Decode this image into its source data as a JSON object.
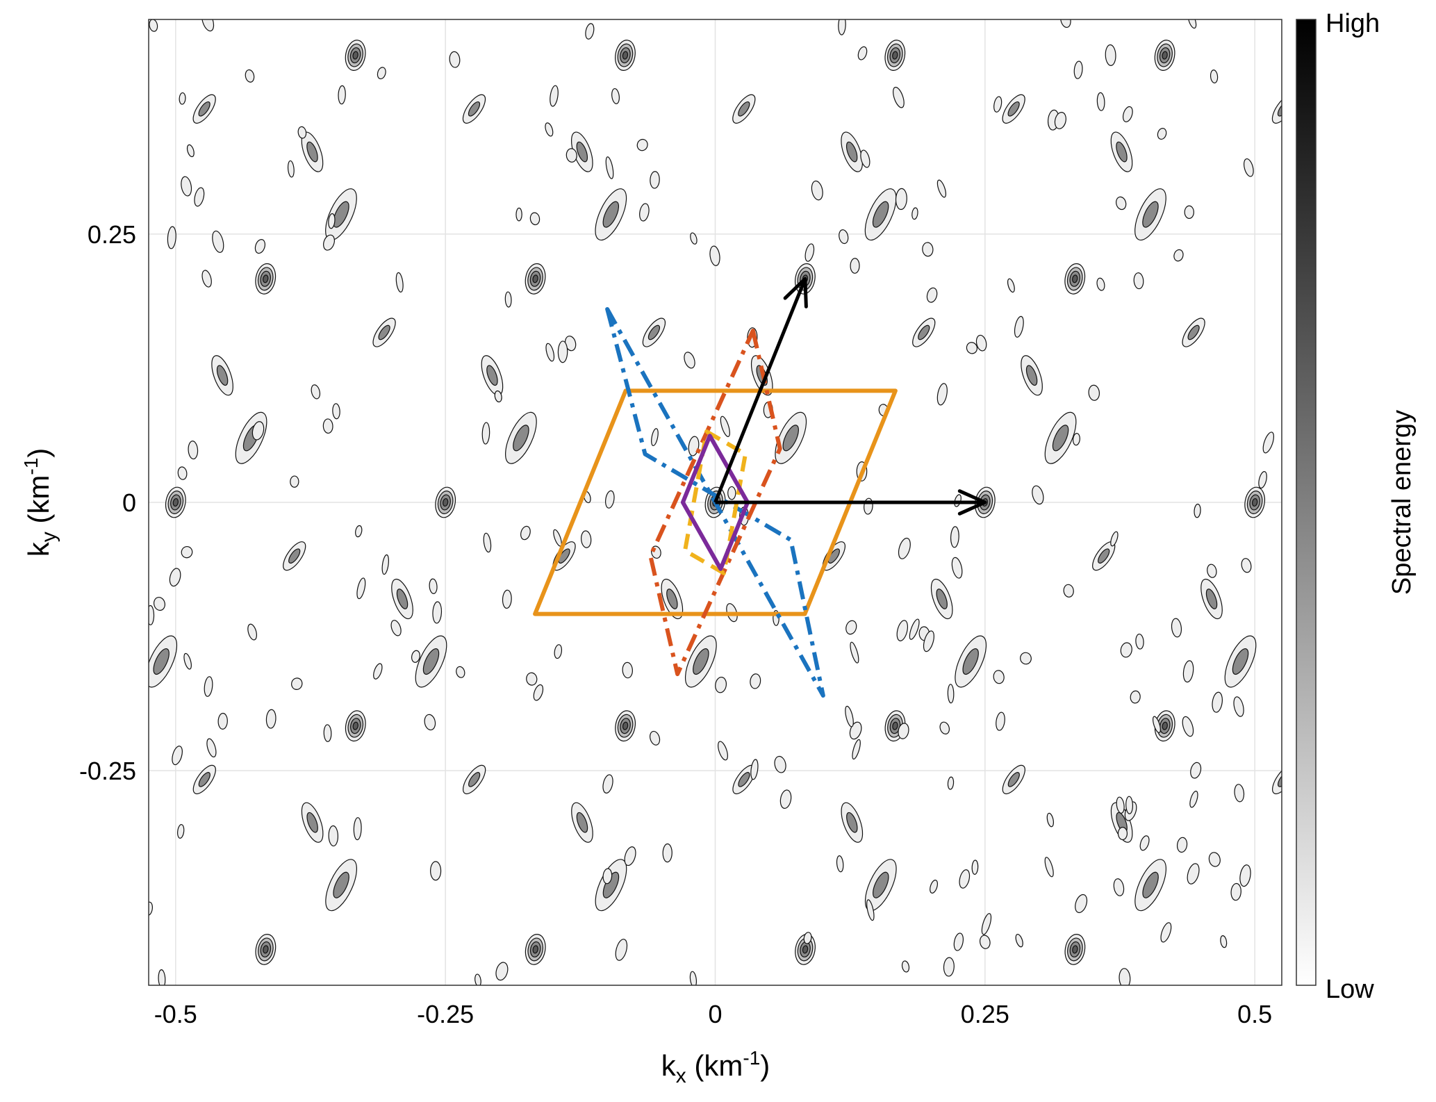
{
  "chart_data": {
    "type": "contour",
    "title": "",
    "xlabel": "k",
    "xlabel_sub": "x",
    "xlabel_unit": " (km",
    "xlabel_unit_exp": "-1",
    "xlabel_unit_close": ")",
    "ylabel": "k",
    "ylabel_sub": "y",
    "ylabel_unit": " (km",
    "ylabel_unit_exp": "-1",
    "ylabel_unit_close": ")",
    "xlim": [
      -0.525,
      0.525
    ],
    "ylim": [
      -0.45,
      0.45
    ],
    "xticks": [
      -0.5,
      -0.25,
      0,
      0.25,
      0.5
    ],
    "xtick_labels": [
      "-0.5",
      "-0.25",
      "0",
      "0.25",
      "0.5"
    ],
    "yticks": [
      -0.25,
      0,
      0.25
    ],
    "ytick_labels": [
      "-0.25",
      "0",
      "0.25"
    ],
    "grid": true,
    "colorbar": {
      "label": "Spectral energy",
      "high_label": "High",
      "low_label": "Low",
      "colormap": [
        "#ffffff",
        "#000000"
      ]
    },
    "peaks": {
      "lattice_a": [
        0.25,
        0.0
      ],
      "lattice_b": [
        0.0833,
        0.2083
      ],
      "note_points": [
        [
          0,
          0
        ],
        [
          0.25,
          0
        ],
        [
          0.0833,
          0.2083
        ],
        [
          -0.25,
          0
        ],
        [
          0.5,
          0
        ],
        [
          -0.5,
          0
        ]
      ]
    },
    "vectors": [
      {
        "from": [
          0,
          0
        ],
        "to": [
          0.25,
          0
        ],
        "color": "#000000"
      },
      {
        "from": [
          0,
          0
        ],
        "to": [
          0.0833,
          0.2083
        ],
        "color": "#000000"
      }
    ],
    "polygons": [
      {
        "color": "#E8931A",
        "style": "solid",
        "points": [
          [
            -0.083,
            0.104
          ],
          [
            0.167,
            0.104
          ],
          [
            0.083,
            -0.104
          ],
          [
            -0.167,
            -0.104
          ]
        ]
      },
      {
        "color": "#1A73BF",
        "style": "dashdot",
        "points": [
          [
            -0.1,
            0.18
          ],
          [
            -0.065,
            0.045
          ],
          [
            0.07,
            -0.035
          ],
          [
            0.1,
            -0.18
          ]
        ]
      },
      {
        "color": "#D9531E",
        "style": "dashdot",
        "points": [
          [
            0.035,
            0.16
          ],
          [
            0.06,
            0.05
          ],
          [
            -0.035,
            -0.16
          ],
          [
            -0.06,
            -0.05
          ]
        ]
      },
      {
        "color": "#F0B21C",
        "style": "dashed",
        "points": [
          [
            -0.008,
            0.066
          ],
          [
            0.028,
            0.045
          ],
          [
            0.008,
            -0.066
          ],
          [
            -0.028,
            -0.045
          ]
        ]
      },
      {
        "color": "#7B2A9A",
        "style": "solid",
        "points": [
          [
            -0.005,
            0.062
          ],
          [
            0.03,
            0.0
          ],
          [
            0.005,
            -0.062
          ],
          [
            -0.03,
            0.0
          ]
        ]
      }
    ]
  }
}
